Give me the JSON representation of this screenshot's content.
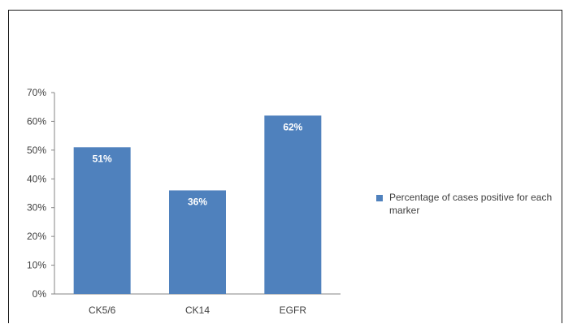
{
  "chart_data": {
    "type": "bar",
    "categories": [
      "CK5/6",
      "CK14",
      "EGFR"
    ],
    "series": [
      {
        "name": "Percentage of cases positive for each marker",
        "values": [
          51,
          36,
          62
        ],
        "data_labels": [
          "51%",
          "36%",
          "62%"
        ],
        "color": "#4f81bd"
      }
    ],
    "ylim": [
      0,
      70
    ],
    "yticks": [
      0,
      10,
      20,
      30,
      40,
      50,
      60,
      70
    ],
    "ytick_labels": [
      "0%",
      "10%",
      "20%",
      "30%",
      "40%",
      "50%",
      "60%",
      "70%"
    ],
    "grid": false,
    "legend_position": "right"
  }
}
